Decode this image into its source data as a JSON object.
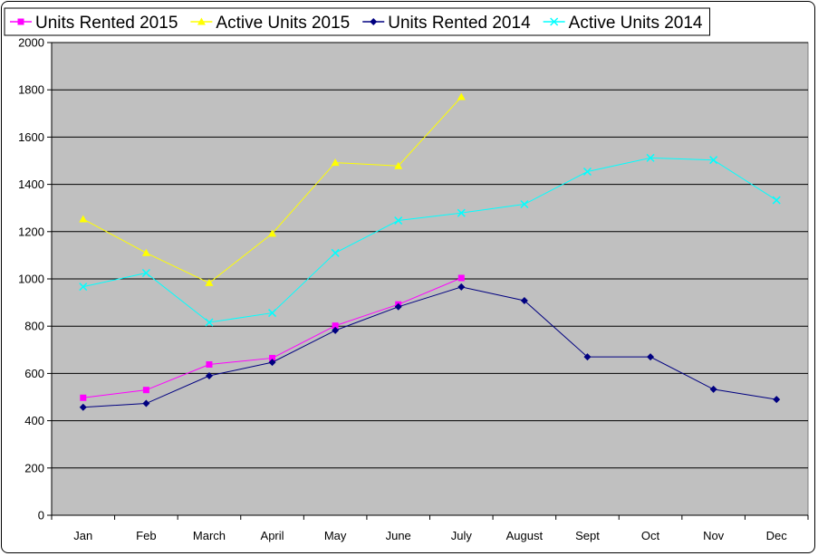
{
  "chart_data": {
    "type": "line",
    "title": "",
    "xlabel": "",
    "ylabel": "",
    "categories": [
      "Jan",
      "Feb",
      "March",
      "April",
      "May",
      "June",
      "July",
      "August",
      "Sept",
      "Oct",
      "Nov",
      "Dec"
    ],
    "ylim": [
      0,
      2000
    ],
    "yticks": [
      "0",
      "200",
      "400",
      "600",
      "800",
      "1000",
      "1200",
      "1400",
      "1600",
      "1800",
      "2000"
    ],
    "grid": true,
    "plot_background": "#c0c0c0",
    "legend_position": "top",
    "series": [
      {
        "name": "Units Rented 2015",
        "color": "#ff00ff",
        "marker": "square",
        "values": [
          497,
          530,
          638,
          665,
          802,
          892,
          1004,
          null,
          null,
          null,
          null,
          null
        ]
      },
      {
        "name": "Active Units 2015",
        "color": "#ffff00",
        "marker": "triangle",
        "values": [
          1253,
          1110,
          983,
          1192,
          1492,
          1478,
          1770,
          null,
          null,
          null,
          null,
          null
        ]
      },
      {
        "name": "Units Rented 2014",
        "color": "#000080",
        "marker": "diamond",
        "values": [
          457,
          473,
          590,
          647,
          782,
          882,
          966,
          908,
          670,
          670,
          533,
          490
        ]
      },
      {
        "name": "Active Units 2014",
        "color": "#00ffff",
        "marker": "x",
        "values": [
          967,
          1025,
          816,
          856,
          1110,
          1247,
          1279,
          1316,
          1454,
          1512,
          1503,
          1333
        ]
      }
    ]
  }
}
